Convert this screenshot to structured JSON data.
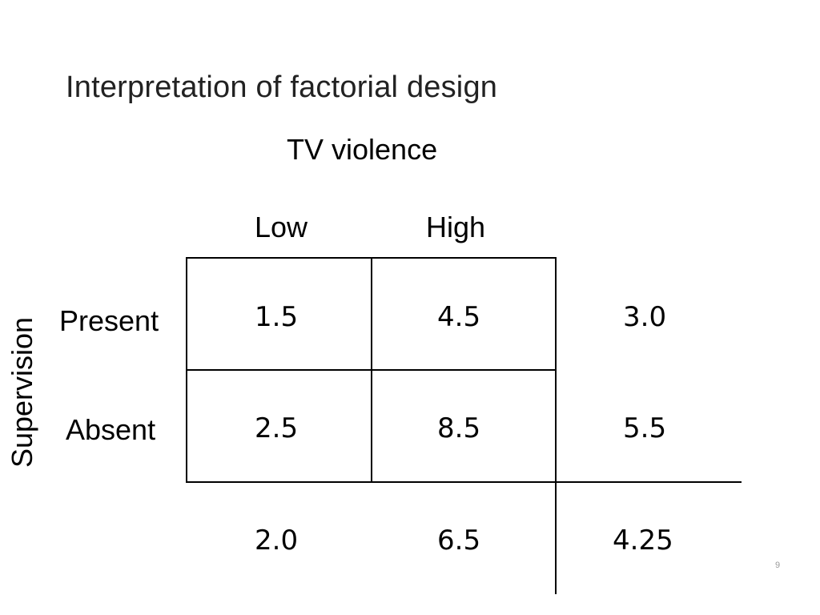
{
  "slide": {
    "title": "Interpretation of factorial design",
    "page_number": "9"
  },
  "table": {
    "column_factor": "TV violence",
    "row_factor": "Supervision",
    "column_levels": [
      "Low",
      "High"
    ],
    "row_levels": [
      "Present",
      "Absent"
    ],
    "rows": [
      {
        "cells": [
          "1.5",
          "4.5"
        ],
        "row_mean": "3.0"
      },
      {
        "cells": [
          "2.5",
          "8.5"
        ],
        "row_mean": "5.5"
      }
    ],
    "column_means": [
      "2.0",
      "6.5"
    ],
    "grand_mean": "4.25"
  }
}
